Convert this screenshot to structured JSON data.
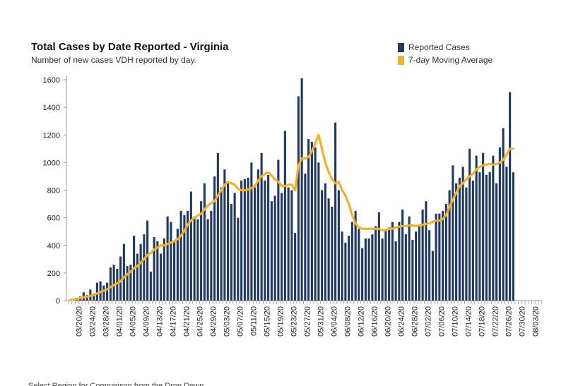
{
  "title": "Total Cases by Date Reported - Virginia",
  "subtitle": "Number of new cases VDH reported by day.",
  "footnote": "Select Region for Comparison from the Drop Down",
  "colors": {
    "bar": "#1f3864",
    "line": "#f5b120"
  },
  "legend": [
    {
      "label": "Reported Cases",
      "color": "#1f3864"
    },
    {
      "label": "7-day Moving Average",
      "color": "#f5b120"
    }
  ],
  "chart_data": {
    "type": "bar",
    "x_start_date": "2020-03-17",
    "x_tick_labels": [
      "03/20/20",
      "03/24/20",
      "03/28/20",
      "04/01/20",
      "04/05/20",
      "04/09/20",
      "04/13/20",
      "04/17/20",
      "04/21/20",
      "04/25/20",
      "04/29/20",
      "05/03/20",
      "05/07/20",
      "05/11/20",
      "05/15/20",
      "05/19/20",
      "05/23/20",
      "05/27/20",
      "05/31/20",
      "06/04/20",
      "06/08/20",
      "06/12/20",
      "06/16/20",
      "06/20/20",
      "06/24/20",
      "06/28/20",
      "07/02/20",
      "07/06/20",
      "07/10/20",
      "07/14/20",
      "07/18/20",
      "07/22/20",
      "07/26/20",
      "07/30/20",
      "08/03/20"
    ],
    "y_ticks": [
      0,
      200,
      400,
      600,
      800,
      1000,
      1200,
      1400,
      1600
    ],
    "ylim": [
      0,
      1600
    ],
    "series": [
      {
        "name": "Reported Cases",
        "kind": "bar",
        "values": [
          5,
          10,
          20,
          30,
          60,
          40,
          80,
          50,
          130,
          140,
          110,
          130,
          240,
          260,
          230,
          320,
          410,
          250,
          260,
          470,
          340,
          410,
          480,
          580,
          210,
          460,
          430,
          340,
          450,
          610,
          570,
          430,
          520,
          650,
          620,
          650,
          790,
          610,
          590,
          720,
          850,
          590,
          650,
          900,
          1070,
          820,
          950,
          850,
          700,
          780,
          600,
          870,
          880,
          890,
          1000,
          820,
          950,
          1070,
          870,
          910,
          720,
          760,
          1020,
          780,
          1230,
          820,
          800,
          490,
          1480,
          1610,
          920,
          1170,
          1150,
          1110,
          1000,
          800,
          850,
          740,
          680,
          1290,
          800,
          500,
          420,
          470,
          570,
          650,
          520,
          380,
          450,
          450,
          480,
          540,
          640,
          450,
          510,
          530,
          570,
          430,
          570,
          660,
          480,
          610,
          440,
          500,
          550,
          660,
          720,
          510,
          360,
          630,
          630,
          650,
          700,
          800,
          980,
          850,
          890,
          970,
          820,
          1100,
          870,
          1050,
          930,
          1070,
          910,
          930,
          1050,
          850,
          1110,
          1250,
          970,
          1510,
          930
        ]
      },
      {
        "name": "7-day Moving Average",
        "kind": "line",
        "values": [
          5,
          8,
          12,
          18,
          24,
          28,
          35,
          40,
          52,
          62,
          72,
          82,
          98,
          112,
          125,
          140,
          170,
          190,
          210,
          235,
          250,
          275,
          300,
          330,
          345,
          370,
          385,
          400,
          400,
          410,
          420,
          430,
          445,
          470,
          505,
          550,
          580,
          600,
          615,
          630,
          660,
          690,
          705,
          720,
          760,
          800,
          840,
          860,
          850,
          840,
          810,
          800,
          800,
          805,
          815,
          830,
          870,
          900,
          920,
          930,
          905,
          880,
          860,
          830,
          830,
          840,
          840,
          800,
          980,
          1030,
          1030,
          1040,
          1080,
          1140,
          1200,
          1100,
          1000,
          930,
          880,
          850,
          860,
          800,
          760,
          700,
          620,
          560,
          530,
          520,
          520,
          520,
          520,
          520,
          520,
          510,
          510,
          520,
          520,
          530,
          535,
          540,
          540,
          545,
          545,
          540,
          545,
          550,
          555,
          560,
          570,
          580,
          580,
          590,
          620,
          680,
          730,
          780,
          830,
          850,
          880,
          900,
          920,
          950,
          970,
          980,
          985,
          990,
          985,
          990,
          1000,
          1020,
          1060,
          1100,
          1100
        ]
      }
    ],
    "grid": false,
    "legend_position": "top-right"
  }
}
